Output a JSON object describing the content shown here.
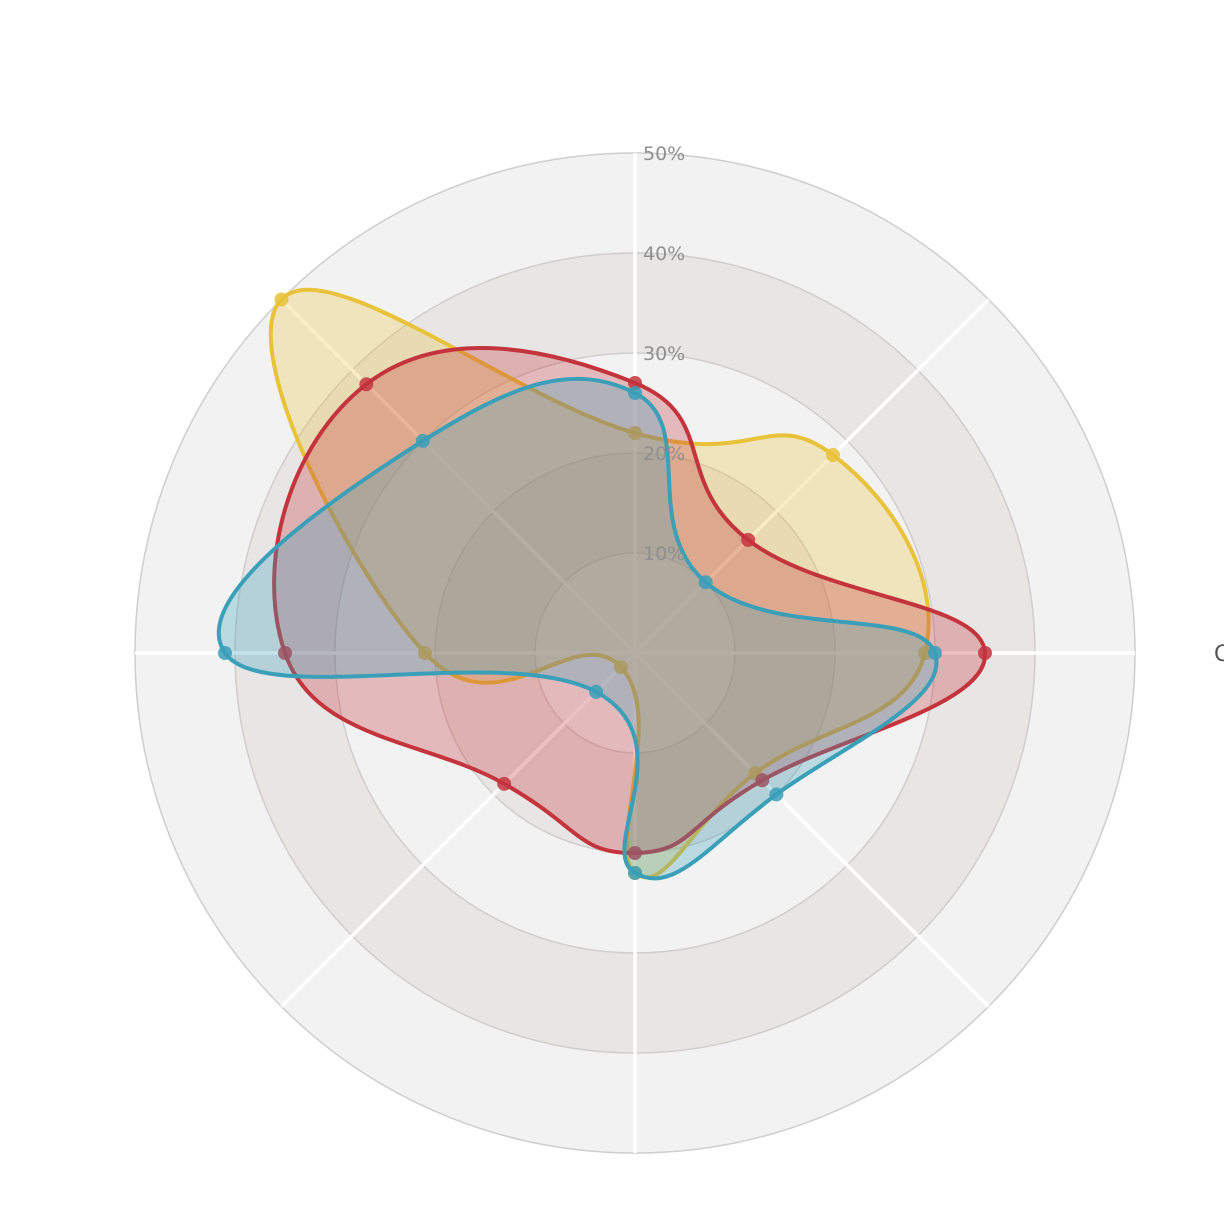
{
  "chart_data": {
    "type": "radar",
    "title": "",
    "radial_axis": {
      "range": [
        0,
        50
      ],
      "ticks": [
        10,
        20,
        30,
        40,
        50
      ],
      "tick_labels": [
        "10%",
        "20%",
        "30%",
        "40%",
        "50%"
      ]
    },
    "angular_axis": {
      "categories": [
        "",
        "",
        "",
        "",
        "",
        "",
        "",
        ""
      ],
      "visible_label_fragment": "C",
      "start": "north",
      "direction": "clockwise",
      "band_colors": [
        "#f3f2f2",
        "#e8e5e5"
      ]
    },
    "legend": "none",
    "series": [
      {
        "color": "#e8c23a",
        "values": [
          22,
          28,
          29,
          17,
          22,
          2,
          21,
          50
        ]
      },
      {
        "color": "#c4343d",
        "values": [
          27,
          16,
          35,
          18,
          20,
          18.5,
          35,
          38
        ]
      },
      {
        "color": "#3a9fb8",
        "values": [
          26,
          10,
          30,
          20,
          22,
          5.5,
          41,
          30
        ]
      }
    ]
  }
}
